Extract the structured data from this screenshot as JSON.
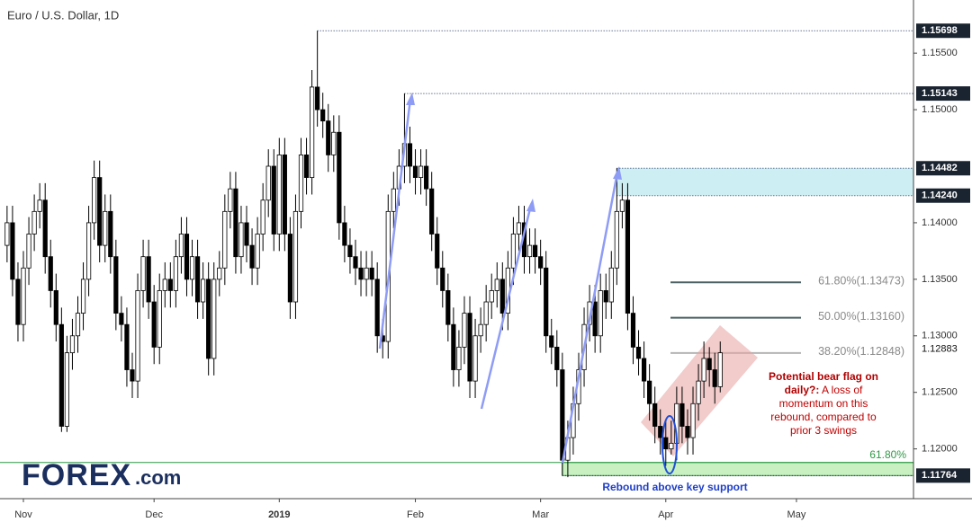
{
  "chart_data": {
    "type": "candlestick",
    "title": "Euro / U.S. Dollar, 1D",
    "ylim": [
      1.1156,
      1.1597
    ],
    "xlim": [
      -1.3,
      166.5
    ],
    "yticks": [
      {
        "value": 1.12,
        "label": "1.12000"
      },
      {
        "value": 1.125,
        "label": "1.12500"
      },
      {
        "value": 1.13,
        "label": "1.13000"
      },
      {
        "value": 1.135,
        "label": "1.13500"
      },
      {
        "value": 1.14,
        "label": "1.14000"
      },
      {
        "value": 1.15,
        "label": "1.15000"
      },
      {
        "value": 1.155,
        "label": "1.15500"
      }
    ],
    "xticks": [
      {
        "value": 3,
        "label": "Nov"
      },
      {
        "value": 27,
        "label": "Dec"
      },
      {
        "value": 50,
        "label": "2019"
      },
      {
        "value": 75,
        "label": "Feb"
      },
      {
        "value": 98,
        "label": "Mar"
      },
      {
        "value": 121,
        "label": "Apr"
      },
      {
        "value": 145,
        "label": "May"
      }
    ],
    "up_color": "#ffffff",
    "down_color": "#000000",
    "ohlc": [
      [
        1.138,
        1.1415,
        1.1365,
        1.14
      ],
      [
        1.14,
        1.1415,
        1.1335,
        1.135
      ],
      [
        1.135,
        1.1365,
        1.1295,
        1.131
      ],
      [
        1.131,
        1.1375,
        1.1295,
        1.136
      ],
      [
        1.136,
        1.1405,
        1.1345,
        1.139
      ],
      [
        1.139,
        1.1425,
        1.1375,
        1.141
      ],
      [
        1.141,
        1.1435,
        1.1395,
        1.142
      ],
      [
        1.142,
        1.1435,
        1.1355,
        1.137
      ],
      [
        1.137,
        1.1385,
        1.1325,
        1.134
      ],
      [
        1.134,
        1.1355,
        1.1295,
        1.131
      ],
      [
        1.131,
        1.1325,
        1.1215,
        1.122
      ],
      [
        1.122,
        1.13,
        1.1215,
        1.1285
      ],
      [
        1.1285,
        1.1315,
        1.127,
        1.13
      ],
      [
        1.13,
        1.1335,
        1.1285,
        1.132
      ],
      [
        1.132,
        1.1365,
        1.1305,
        1.135
      ],
      [
        1.135,
        1.1415,
        1.1335,
        1.14
      ],
      [
        1.14,
        1.1455,
        1.1385,
        1.144
      ],
      [
        1.144,
        1.1455,
        1.1365,
        1.138
      ],
      [
        1.138,
        1.1425,
        1.1365,
        1.141
      ],
      [
        1.141,
        1.1425,
        1.1355,
        1.137
      ],
      [
        1.137,
        1.1385,
        1.1305,
        1.132
      ],
      [
        1.132,
        1.1335,
        1.1295,
        1.131
      ],
      [
        1.131,
        1.1325,
        1.1255,
        1.127
      ],
      [
        1.127,
        1.1285,
        1.1245,
        1.126
      ],
      [
        1.126,
        1.1355,
        1.1245,
        1.134
      ],
      [
        1.134,
        1.1385,
        1.1325,
        1.137
      ],
      [
        1.137,
        1.1385,
        1.1315,
        1.133
      ],
      [
        1.133,
        1.1345,
        1.1275,
        1.129
      ],
      [
        1.129,
        1.1355,
        1.1275,
        1.134
      ],
      [
        1.134,
        1.1365,
        1.1325,
        1.135
      ],
      [
        1.135,
        1.1365,
        1.1325,
        1.134
      ],
      [
        1.134,
        1.1385,
        1.1325,
        1.137
      ],
      [
        1.137,
        1.1405,
        1.1355,
        1.139
      ],
      [
        1.139,
        1.1405,
        1.1335,
        1.135
      ],
      [
        1.135,
        1.1385,
        1.1335,
        1.137
      ],
      [
        1.137,
        1.1385,
        1.1315,
        1.133
      ],
      [
        1.133,
        1.1365,
        1.1315,
        1.135
      ],
      [
        1.135,
        1.1365,
        1.1265,
        1.128
      ],
      [
        1.128,
        1.1365,
        1.1265,
        1.135
      ],
      [
        1.135,
        1.1375,
        1.1335,
        1.136
      ],
      [
        1.136,
        1.1425,
        1.1345,
        1.141
      ],
      [
        1.141,
        1.1445,
        1.1395,
        1.143
      ],
      [
        1.143,
        1.1445,
        1.1355,
        1.137
      ],
      [
        1.137,
        1.1415,
        1.1355,
        1.14
      ],
      [
        1.14,
        1.1415,
        1.1365,
        1.138
      ],
      [
        1.138,
        1.1395,
        1.1345,
        1.136
      ],
      [
        1.136,
        1.1405,
        1.1345,
        1.139
      ],
      [
        1.139,
        1.1435,
        1.1375,
        1.142
      ],
      [
        1.142,
        1.1465,
        1.1405,
        1.145
      ],
      [
        1.145,
        1.1465,
        1.1375,
        1.139
      ],
      [
        1.139,
        1.1475,
        1.1375,
        1.146
      ],
      [
        1.146,
        1.1475,
        1.1375,
        1.139
      ],
      [
        1.139,
        1.1405,
        1.1315,
        1.133
      ],
      [
        1.133,
        1.1425,
        1.1315,
        1.141
      ],
      [
        1.141,
        1.1475,
        1.1395,
        1.146
      ],
      [
        1.146,
        1.1475,
        1.1425,
        1.144
      ],
      [
        1.144,
        1.1535,
        1.1425,
        1.152
      ],
      [
        1.152,
        1.15698,
        1.1485,
        1.15
      ],
      [
        1.15,
        1.1515,
        1.1475,
        1.149
      ],
      [
        1.149,
        1.1505,
        1.1445,
        1.146
      ],
      [
        1.146,
        1.1495,
        1.1445,
        1.148
      ],
      [
        1.148,
        1.1495,
        1.1385,
        1.14
      ],
      [
        1.14,
        1.1415,
        1.1365,
        1.138
      ],
      [
        1.138,
        1.1395,
        1.1355,
        1.137
      ],
      [
        1.137,
        1.1385,
        1.1345,
        1.136
      ],
      [
        1.136,
        1.1375,
        1.1335,
        1.135
      ],
      [
        1.135,
        1.1375,
        1.1335,
        1.136
      ],
      [
        1.136,
        1.1375,
        1.1335,
        1.135
      ],
      [
        1.135,
        1.1365,
        1.1285,
        1.13
      ],
      [
        1.13,
        1.1315,
        1.128,
        1.1295
      ],
      [
        1.1295,
        1.1425,
        1.128,
        1.141
      ],
      [
        1.141,
        1.1445,
        1.1395,
        1.143
      ],
      [
        1.143,
        1.1465,
        1.1415,
        1.145
      ],
      [
        1.145,
        1.15143,
        1.1435,
        1.147
      ],
      [
        1.147,
        1.1485,
        1.1435,
        1.145
      ],
      [
        1.145,
        1.1465,
        1.1425,
        1.144
      ],
      [
        1.144,
        1.1465,
        1.1425,
        1.145
      ],
      [
        1.145,
        1.1465,
        1.1415,
        1.143
      ],
      [
        1.143,
        1.1445,
        1.1375,
        1.139
      ],
      [
        1.139,
        1.1405,
        1.1345,
        1.136
      ],
      [
        1.136,
        1.1375,
        1.1325,
        1.134
      ],
      [
        1.134,
        1.1355,
        1.1295,
        1.131
      ],
      [
        1.131,
        1.1325,
        1.1255,
        1.127
      ],
      [
        1.127,
        1.1305,
        1.1255,
        1.129
      ],
      [
        1.129,
        1.1335,
        1.1275,
        1.132
      ],
      [
        1.132,
        1.1335,
        1.1245,
        1.126
      ],
      [
        1.126,
        1.1315,
        1.1245,
        1.13
      ],
      [
        1.13,
        1.1325,
        1.1285,
        1.131
      ],
      [
        1.131,
        1.1345,
        1.1295,
        1.133
      ],
      [
        1.133,
        1.1355,
        1.1315,
        1.134
      ],
      [
        1.134,
        1.1365,
        1.1325,
        1.135
      ],
      [
        1.135,
        1.1365,
        1.1305,
        1.132
      ],
      [
        1.132,
        1.1375,
        1.1305,
        1.136
      ],
      [
        1.136,
        1.1405,
        1.1345,
        1.139
      ],
      [
        1.139,
        1.1415,
        1.1375,
        1.14
      ],
      [
        1.14,
        1.1415,
        1.1355,
        1.137
      ],
      [
        1.137,
        1.1395,
        1.1355,
        1.138
      ],
      [
        1.138,
        1.1395,
        1.1355,
        1.137
      ],
      [
        1.137,
        1.1385,
        1.1345,
        1.136
      ],
      [
        1.136,
        1.1375,
        1.1285,
        1.13
      ],
      [
        1.13,
        1.1315,
        1.1275,
        1.129
      ],
      [
        1.129,
        1.1305,
        1.1255,
        1.127
      ],
      [
        1.127,
        1.1285,
        1.11764,
        1.119
      ],
      [
        1.119,
        1.1225,
        1.1175,
        1.121
      ],
      [
        1.121,
        1.1255,
        1.1195,
        1.124
      ],
      [
        1.124,
        1.1285,
        1.1225,
        1.127
      ],
      [
        1.127,
        1.1325,
        1.1255,
        1.131
      ],
      [
        1.131,
        1.1345,
        1.1295,
        1.133
      ],
      [
        1.133,
        1.1345,
        1.1285,
        1.13
      ],
      [
        1.13,
        1.1355,
        1.1285,
        1.134
      ],
      [
        1.134,
        1.1355,
        1.1315,
        1.133
      ],
      [
        1.133,
        1.1375,
        1.1315,
        1.136
      ],
      [
        1.136,
        1.14482,
        1.1345,
        1.141
      ],
      [
        1.141,
        1.1435,
        1.1395,
        1.142
      ],
      [
        1.142,
        1.1435,
        1.1305,
        1.132
      ],
      [
        1.132,
        1.1335,
        1.1275,
        1.129
      ],
      [
        1.129,
        1.1305,
        1.1265,
        1.128
      ],
      [
        1.128,
        1.1295,
        1.1245,
        1.126
      ],
      [
        1.126,
        1.1275,
        1.1225,
        1.124
      ],
      [
        1.124,
        1.1255,
        1.1205,
        1.122
      ],
      [
        1.122,
        1.1235,
        1.1195,
        1.121
      ],
      [
        1.121,
        1.1225,
        1.1185,
        1.12
      ],
      [
        1.12,
        1.1225,
        1.1195,
        1.1205
      ],
      [
        1.1205,
        1.1255,
        1.119,
        1.124
      ],
      [
        1.124,
        1.1255,
        1.1205,
        1.122
      ],
      [
        1.122,
        1.1235,
        1.1195,
        1.121
      ],
      [
        1.121,
        1.1255,
        1.1195,
        1.124
      ],
      [
        1.124,
        1.1275,
        1.1225,
        1.126
      ],
      [
        1.126,
        1.1295,
        1.1245,
        1.128
      ],
      [
        1.128,
        1.129,
        1.1255,
        1.127
      ],
      [
        1.127,
        1.1285,
        1.124,
        1.1255
      ],
      [
        1.1255,
        1.1295,
        1.125,
        1.1285
      ]
    ],
    "levels": [
      {
        "value": 1.15698,
        "label": "1.15698",
        "boxed": true
      },
      {
        "value": 1.15143,
        "label": "1.15143",
        "boxed": true
      },
      {
        "value": 1.14482,
        "label": "1.14482",
        "boxed": true
      },
      {
        "value": 1.1424,
        "label": "1.14240",
        "boxed": true
      },
      {
        "value": 1.12883,
        "label": "1.12883",
        "boxed": false
      },
      {
        "value": 1.11764,
        "label": "1.11764",
        "boxed": true
      }
    ],
    "zones": [
      {
        "from": 1.1424,
        "to": 1.14482,
        "color": "#cdeef2"
      },
      {
        "from": 1.11764,
        "to": 1.1188,
        "color": "#c8f0c0",
        "label": "61.80%"
      }
    ],
    "fib": [
      {
        "value": 1.13473,
        "label": "61.80%(1.13473)",
        "color": "#4a6163"
      },
      {
        "value": 1.1316,
        "label": "50.00%(1.13160)",
        "color": "#4a6163"
      },
      {
        "value": 1.12848,
        "label": "38.20%(1.12848)",
        "color": "#b5b5b5"
      }
    ]
  },
  "annotations": {
    "bear_flag_title": "Potential bear flag on daily?:",
    "bear_flag_body": "A loss of momentum on this rebound, compared to prior 3 swings",
    "support": "Rebound above key support"
  },
  "logo": {
    "brand": "FOREX",
    "suffix": ".com"
  }
}
